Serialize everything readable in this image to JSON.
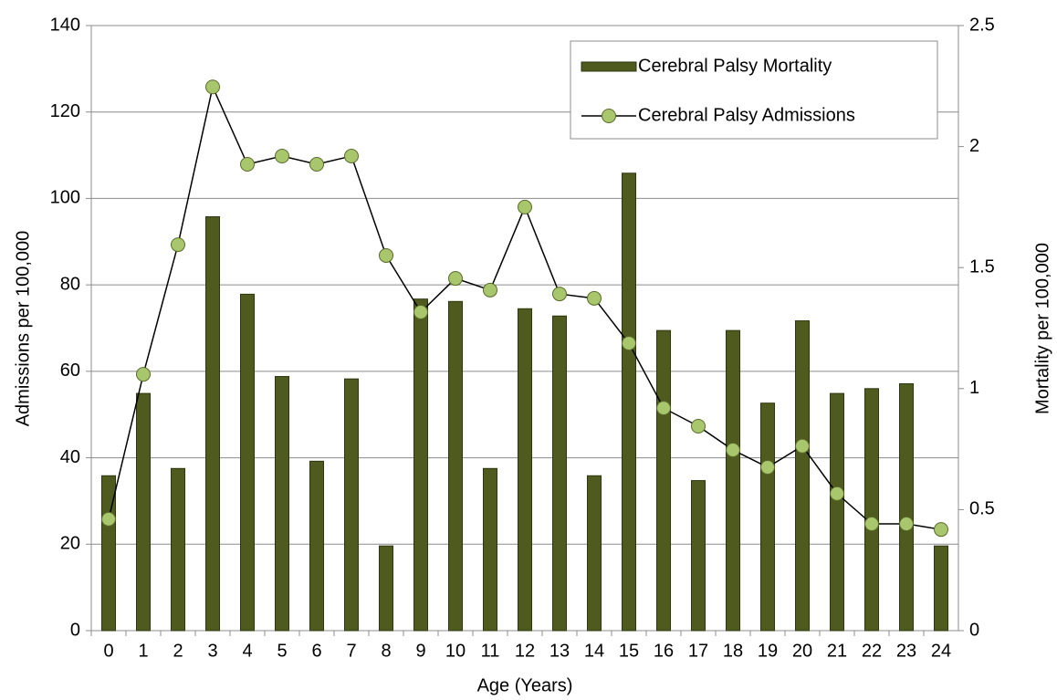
{
  "chart_data": {
    "type": "bar-line",
    "xlabel": "Age (Years)",
    "ylabel": "Admissions per 100,000",
    "y2label": "Mortality per 100,000",
    "categories": [
      "0",
      "1",
      "2",
      "3",
      "4",
      "5",
      "6",
      "7",
      "8",
      "9",
      "10",
      "11",
      "12",
      "13",
      "14",
      "15",
      "16",
      "17",
      "18",
      "19",
      "20",
      "21",
      "22",
      "23",
      "24"
    ],
    "series": [
      {
        "name": "Cerebral Palsy Mortality",
        "type": "bar",
        "axis": "y2",
        "color": "#4f5b1e",
        "values": [
          0.64,
          0.98,
          0.67,
          1.71,
          1.39,
          1.05,
          0.7,
          1.04,
          0.35,
          1.37,
          1.36,
          0.67,
          1.33,
          1.3,
          0.64,
          1.89,
          1.24,
          0.62,
          1.24,
          0.94,
          1.28,
          0.98,
          1.0,
          1.02,
          0.35
        ]
      },
      {
        "name": "Cerebral Palsy Admissions",
        "type": "line",
        "axis": "y",
        "color": "#a8c66c",
        "values": [
          25.8,
          59.3,
          89.3,
          125.8,
          107.9,
          109.8,
          107.9,
          109.8,
          86.8,
          73.7,
          81.5,
          78.8,
          98.0,
          77.9,
          76.9,
          66.5,
          51.5,
          47.3,
          41.8,
          37.8,
          42.7,
          31.7,
          24.7,
          24.7,
          23.4
        ]
      }
    ],
    "ylim": [
      0,
      140
    ],
    "yticks": [
      0,
      20,
      40,
      60,
      80,
      100,
      120,
      140
    ],
    "y2lim": [
      0,
      2.5
    ],
    "y2ticks": [
      0,
      0.5,
      1,
      1.5,
      2,
      2.5
    ],
    "grid": true,
    "legend": "top-right"
  }
}
